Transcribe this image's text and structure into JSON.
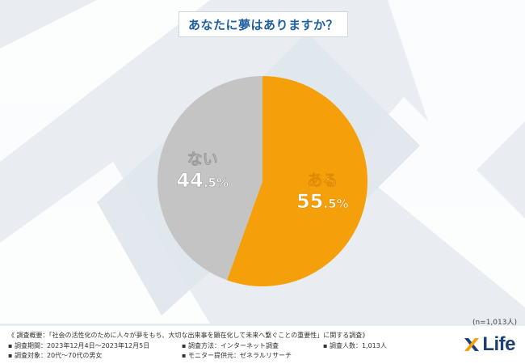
{
  "chart_data": {
    "type": "pie",
    "title": "あなたに夢はありますか？",
    "slices": [
      {
        "label": "ある",
        "value": 55.5,
        "color": "#f5a00a"
      },
      {
        "label": "ない",
        "value": 44.5,
        "color": "#c4c4c4"
      }
    ],
    "start_angle_deg": 0,
    "direction": "clockwise",
    "sample_note": "(n=1,013人)"
  },
  "footer": {
    "line1": "《 調査概要：「社会の活性化のために人々が夢をもち、大切な出来事を顕在化して未来へ繋ぐことの重要性」に関する調査》",
    "period": "▪ 調査期間：2023年12月4日〜2023年12月5日",
    "method": "▪ 調査方法：インターネット調査",
    "count": "▪ 調査人数：1,013人",
    "target": "▪ 調査対象：20代〜70代の男女",
    "provider": "▪ モニター提供元：ゼネラルリサーチ"
  },
  "logo": {
    "text": "Life",
    "color": "#1d3f73",
    "accent": "#f5a00a"
  }
}
